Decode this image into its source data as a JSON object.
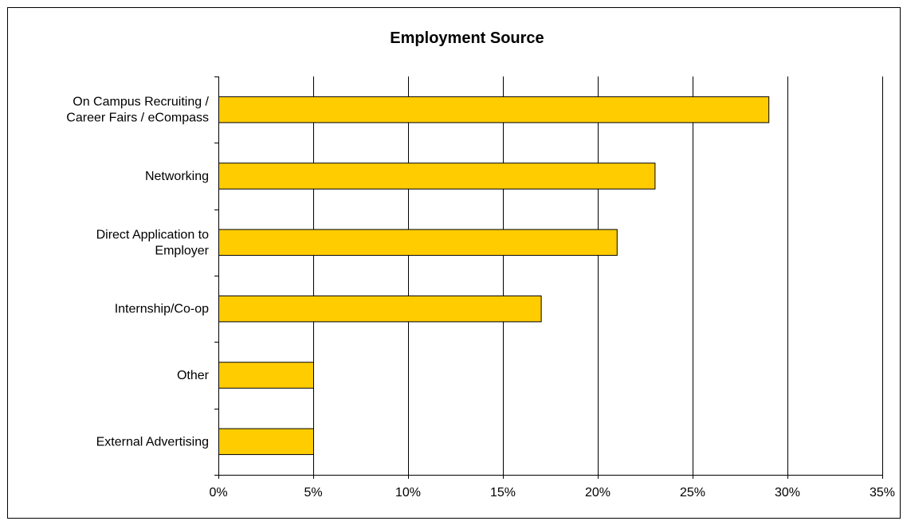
{
  "chart_data": {
    "type": "bar",
    "orientation": "horizontal",
    "title": "Employment Source",
    "xlabel": "",
    "ylabel": "",
    "categories": [
      [
        "On Campus Recruiting /",
        "Career Fairs / eCompass"
      ],
      [
        "Networking"
      ],
      [
        "Direct Application to",
        "Employer"
      ],
      [
        "Internship/Co-op"
      ],
      [
        "Other"
      ],
      [
        "External Advertising"
      ]
    ],
    "values": [
      29,
      23,
      21,
      17,
      5,
      5
    ],
    "value_unit": "%",
    "xlim": [
      0,
      35
    ],
    "xticks": [
      0,
      5,
      10,
      15,
      20,
      25,
      30,
      35
    ],
    "xtick_labels": [
      "0%",
      "5%",
      "10%",
      "15%",
      "20%",
      "25%",
      "30%",
      "35%"
    ],
    "grid": "vertical",
    "legend": "none",
    "colors": {
      "bar_fill": "#FFCC00",
      "bar_stroke": "#000000",
      "grid": "#000000",
      "background": "#FFFFFF"
    }
  }
}
